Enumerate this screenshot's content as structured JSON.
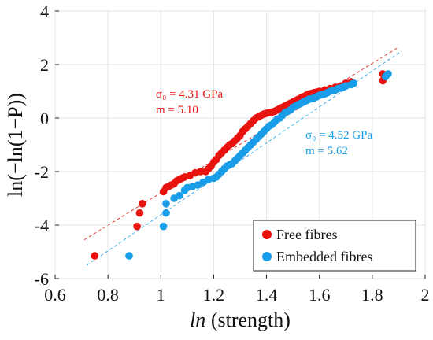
{
  "chart_data": {
    "type": "scatter",
    "xlabel_italic": "ln",
    "xlabel_rest": " (strength)",
    "ylabel": "ln(−ln(1−P))",
    "xlim": [
      0.6,
      2.0
    ],
    "ylim": [
      -6,
      4
    ],
    "xticks": [
      0.6,
      0.8,
      1.0,
      1.2,
      1.4,
      1.6,
      1.8,
      2.0
    ],
    "xtick_labels": [
      "0.6",
      "0.8",
      "1",
      "1.2",
      "1.4",
      "1.6",
      "1.8",
      "2"
    ],
    "yticks": [
      -6,
      -4,
      -2,
      0,
      2,
      4
    ],
    "ytick_labels": [
      "-6",
      "-4",
      "-2",
      "0",
      "2",
      "4"
    ],
    "grid": true,
    "legend_position": "bottom-right",
    "series": [
      {
        "name": "Free fibres",
        "color": "#e8120f",
        "fit": {
          "x": [
            0.71,
            1.9
          ],
          "y": [
            -4.55,
            2.65
          ]
        },
        "annotation": [
          "σ₀ = 4.31 GPa",
          "m = 5.10"
        ],
        "points": [
          [
            0.75,
            -5.15
          ],
          [
            0.91,
            -4.05
          ],
          [
            0.92,
            -3.55
          ],
          [
            0.93,
            -3.2
          ],
          [
            1.01,
            -2.75
          ],
          [
            1.02,
            -2.6
          ],
          [
            1.03,
            -2.55
          ],
          [
            1.04,
            -2.5
          ],
          [
            1.05,
            -2.45
          ],
          [
            1.06,
            -2.35
          ],
          [
            1.07,
            -2.3
          ],
          [
            1.08,
            -2.25
          ],
          [
            1.09,
            -2.2
          ],
          [
            1.11,
            -2.15
          ],
          [
            1.13,
            -2.05
          ],
          [
            1.15,
            -2.0
          ],
          [
            1.17,
            -2.0
          ],
          [
            1.18,
            -1.9
          ],
          [
            1.19,
            -1.8
          ],
          [
            1.2,
            -1.65
          ],
          [
            1.21,
            -1.55
          ],
          [
            1.22,
            -1.4
          ],
          [
            1.23,
            -1.3
          ],
          [
            1.24,
            -1.2
          ],
          [
            1.25,
            -1.1
          ],
          [
            1.26,
            -1.0
          ],
          [
            1.27,
            -0.95
          ],
          [
            1.28,
            -0.85
          ],
          [
            1.29,
            -0.75
          ],
          [
            1.3,
            -0.65
          ],
          [
            1.31,
            -0.5
          ],
          [
            1.32,
            -0.4
          ],
          [
            1.33,
            -0.3
          ],
          [
            1.34,
            -0.2
          ],
          [
            1.35,
            -0.1
          ],
          [
            1.36,
            0.0
          ],
          [
            1.37,
            0.05
          ],
          [
            1.38,
            0.1
          ],
          [
            1.39,
            0.15
          ],
          [
            1.4,
            0.18
          ],
          [
            1.41,
            0.2
          ],
          [
            1.42,
            0.22
          ],
          [
            1.43,
            0.25
          ],
          [
            1.44,
            0.3
          ],
          [
            1.45,
            0.35
          ],
          [
            1.46,
            0.4
          ],
          [
            1.47,
            0.45
          ],
          [
            1.48,
            0.5
          ],
          [
            1.49,
            0.55
          ],
          [
            1.5,
            0.6
          ],
          [
            1.51,
            0.65
          ],
          [
            1.52,
            0.7
          ],
          [
            1.53,
            0.75
          ],
          [
            1.54,
            0.8
          ],
          [
            1.55,
            0.85
          ],
          [
            1.56,
            0.9
          ],
          [
            1.57,
            0.92
          ],
          [
            1.58,
            0.95
          ],
          [
            1.59,
            0.97
          ],
          [
            1.6,
            1.0
          ],
          [
            1.62,
            1.05
          ],
          [
            1.64,
            1.1
          ],
          [
            1.66,
            1.15
          ],
          [
            1.68,
            1.2
          ],
          [
            1.7,
            1.3
          ],
          [
            1.72,
            1.35
          ],
          [
            1.84,
            1.4
          ],
          [
            1.84,
            1.65
          ]
        ]
      },
      {
        "name": "Embedded fibres",
        "color": "#1a9de8",
        "fit": {
          "x": [
            0.72,
            1.91
          ],
          "y": [
            -5.5,
            2.5
          ]
        },
        "annotation": [
          "σ₀ = 4.52 GPa",
          "m = 5.62"
        ],
        "points": [
          [
            0.88,
            -5.15
          ],
          [
            1.01,
            -4.05
          ],
          [
            1.02,
            -3.55
          ],
          [
            1.02,
            -3.2
          ],
          [
            1.05,
            -3.0
          ],
          [
            1.07,
            -2.9
          ],
          [
            1.09,
            -2.7
          ],
          [
            1.1,
            -2.6
          ],
          [
            1.12,
            -2.55
          ],
          [
            1.14,
            -2.5
          ],
          [
            1.16,
            -2.4
          ],
          [
            1.18,
            -2.3
          ],
          [
            1.2,
            -2.25
          ],
          [
            1.21,
            -2.2
          ],
          [
            1.22,
            -2.1
          ],
          [
            1.23,
            -2.0
          ],
          [
            1.24,
            -1.9
          ],
          [
            1.25,
            -1.8
          ],
          [
            1.26,
            -1.75
          ],
          [
            1.27,
            -1.7
          ],
          [
            1.28,
            -1.6
          ],
          [
            1.29,
            -1.5
          ],
          [
            1.3,
            -1.4
          ],
          [
            1.31,
            -1.3
          ],
          [
            1.32,
            -1.2
          ],
          [
            1.33,
            -1.1
          ],
          [
            1.34,
            -1.0
          ],
          [
            1.35,
            -0.9
          ],
          [
            1.36,
            -0.8
          ],
          [
            1.37,
            -0.7
          ],
          [
            1.38,
            -0.6
          ],
          [
            1.39,
            -0.5
          ],
          [
            1.4,
            -0.4
          ],
          [
            1.41,
            -0.3
          ],
          [
            1.42,
            -0.25
          ],
          [
            1.43,
            -0.15
          ],
          [
            1.44,
            -0.05
          ],
          [
            1.45,
            0.0
          ],
          [
            1.46,
            0.1
          ],
          [
            1.47,
            0.2
          ],
          [
            1.48,
            0.25
          ],
          [
            1.49,
            0.3
          ],
          [
            1.5,
            0.4
          ],
          [
            1.51,
            0.45
          ],
          [
            1.52,
            0.5
          ],
          [
            1.53,
            0.55
          ],
          [
            1.54,
            0.6
          ],
          [
            1.55,
            0.65
          ],
          [
            1.56,
            0.7
          ],
          [
            1.57,
            0.72
          ],
          [
            1.58,
            0.75
          ],
          [
            1.59,
            0.8
          ],
          [
            1.6,
            0.85
          ],
          [
            1.61,
            0.88
          ],
          [
            1.62,
            0.9
          ],
          [
            1.63,
            0.95
          ],
          [
            1.64,
            1.0
          ],
          [
            1.65,
            1.02
          ],
          [
            1.66,
            1.05
          ],
          [
            1.67,
            1.1
          ],
          [
            1.68,
            1.12
          ],
          [
            1.69,
            1.15
          ],
          [
            1.7,
            1.2
          ],
          [
            1.72,
            1.25
          ],
          [
            1.73,
            1.3
          ],
          [
            1.85,
            1.55
          ],
          [
            1.86,
            1.65
          ]
        ]
      }
    ]
  }
}
